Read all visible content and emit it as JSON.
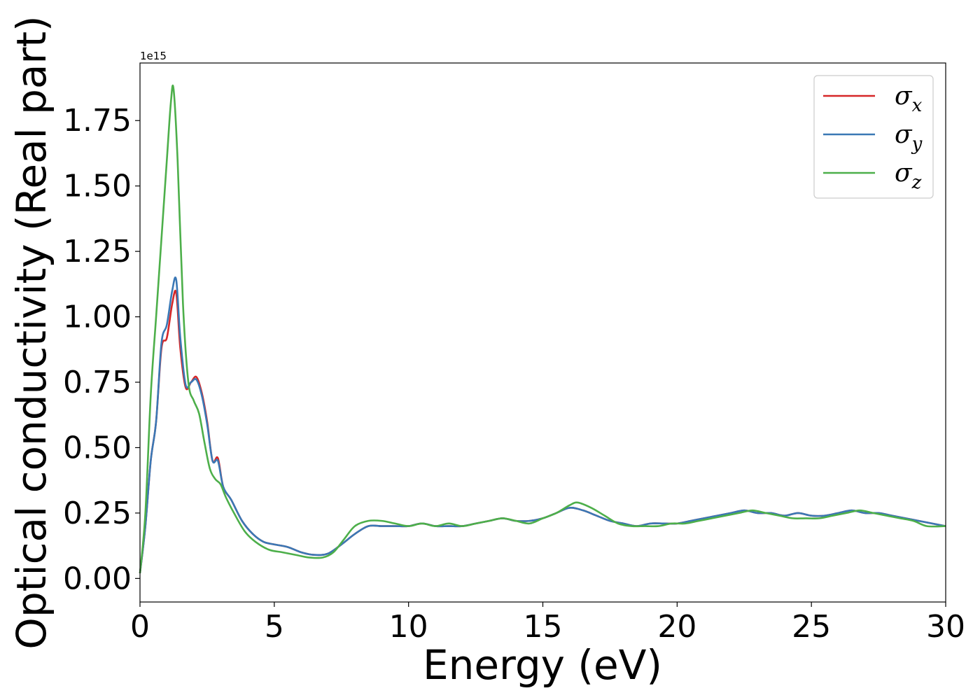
{
  "chart_data": {
    "type": "line",
    "xlabel": "Energy (eV)",
    "ylabel": "Optical conductivity (Real part)",
    "offset_text": "1e15",
    "y_scale": 1000000000000000.0,
    "xlim": [
      0,
      30
    ],
    "ylim": [
      -0.09,
      1.97
    ],
    "x_ticks": [
      0,
      5,
      10,
      15,
      20,
      25,
      30
    ],
    "x_tick_labels": [
      "0",
      "5",
      "10",
      "15",
      "20",
      "25",
      "30"
    ],
    "y_ticks": [
      0.0,
      0.25,
      0.5,
      0.75,
      1.0,
      1.25,
      1.5,
      1.75
    ],
    "y_tick_labels": [
      "0.00",
      "0.25",
      "0.50",
      "0.75",
      "1.00",
      "1.25",
      "1.50",
      "1.75"
    ],
    "grid": false,
    "legend_position": "top-right",
    "series": [
      {
        "name": "σx",
        "legend_base": "σ",
        "legend_sub": "x",
        "color": "#d62728",
        "x": [
          0,
          0.2,
          0.4,
          0.6,
          0.8,
          1.0,
          1.2,
          1.35,
          1.5,
          1.7,
          1.9,
          2.1,
          2.3,
          2.5,
          2.7,
          2.9,
          3.1,
          3.4,
          3.8,
          4.2,
          4.6,
          5.0,
          5.5,
          6.0,
          6.5,
          7.0,
          7.5,
          8.0,
          8.5,
          9.0,
          9.5,
          10,
          10.5,
          11,
          11.5,
          12,
          12.5,
          13,
          13.5,
          14,
          14.5,
          15,
          15.5,
          16,
          16.5,
          17,
          17.5,
          18,
          18.5,
          19,
          19.5,
          20,
          20.5,
          21,
          21.5,
          22,
          22.5,
          23,
          23.5,
          24,
          24.5,
          25,
          25.5,
          26,
          26.5,
          27,
          27.5,
          28,
          28.5,
          29,
          29.5,
          30
        ],
        "y": [
          0.02,
          0.2,
          0.45,
          0.6,
          0.88,
          0.92,
          1.05,
          1.09,
          0.88,
          0.73,
          0.75,
          0.77,
          0.71,
          0.6,
          0.45,
          0.46,
          0.35,
          0.3,
          0.22,
          0.17,
          0.14,
          0.13,
          0.12,
          0.1,
          0.09,
          0.095,
          0.13,
          0.17,
          0.2,
          0.2,
          0.2,
          0.2,
          0.21,
          0.2,
          0.2,
          0.2,
          0.21,
          0.22,
          0.23,
          0.22,
          0.22,
          0.23,
          0.25,
          0.27,
          0.26,
          0.24,
          0.22,
          0.21,
          0.2,
          0.21,
          0.21,
          0.21,
          0.22,
          0.23,
          0.24,
          0.25,
          0.26,
          0.25,
          0.25,
          0.24,
          0.25,
          0.24,
          0.24,
          0.25,
          0.26,
          0.25,
          0.25,
          0.24,
          0.23,
          0.22,
          0.21,
          0.2
        ]
      },
      {
        "name": "σy",
        "legend_base": "σ",
        "legend_sub": "y",
        "color": "#3a78b5",
        "x": [
          0,
          0.2,
          0.4,
          0.6,
          0.8,
          1.0,
          1.2,
          1.35,
          1.5,
          1.7,
          1.9,
          2.1,
          2.3,
          2.5,
          2.7,
          2.9,
          3.1,
          3.4,
          3.8,
          4.2,
          4.6,
          5.0,
          5.5,
          6.0,
          6.5,
          7.0,
          7.5,
          8.0,
          8.5,
          9.0,
          9.5,
          10,
          10.5,
          11,
          11.5,
          12,
          12.5,
          13,
          13.5,
          14,
          14.5,
          15,
          15.5,
          16,
          16.5,
          17,
          17.5,
          18,
          18.5,
          19,
          19.5,
          20,
          20.5,
          21,
          21.5,
          22,
          22.5,
          23,
          23.5,
          24,
          24.5,
          25,
          25.5,
          26,
          26.5,
          27,
          27.5,
          28,
          28.5,
          29,
          29.5,
          30
        ],
        "y": [
          0.02,
          0.2,
          0.45,
          0.6,
          0.9,
          0.97,
          1.1,
          1.14,
          0.92,
          0.74,
          0.75,
          0.76,
          0.7,
          0.59,
          0.45,
          0.45,
          0.35,
          0.3,
          0.22,
          0.17,
          0.14,
          0.13,
          0.12,
          0.1,
          0.09,
          0.095,
          0.13,
          0.17,
          0.2,
          0.2,
          0.2,
          0.2,
          0.21,
          0.2,
          0.2,
          0.2,
          0.21,
          0.22,
          0.23,
          0.22,
          0.22,
          0.23,
          0.25,
          0.27,
          0.26,
          0.24,
          0.22,
          0.21,
          0.2,
          0.21,
          0.21,
          0.21,
          0.22,
          0.23,
          0.24,
          0.25,
          0.26,
          0.25,
          0.25,
          0.24,
          0.25,
          0.24,
          0.24,
          0.25,
          0.26,
          0.25,
          0.25,
          0.24,
          0.23,
          0.22,
          0.21,
          0.2
        ]
      },
      {
        "name": "σz",
        "legend_base": "σ",
        "legend_sub": "z",
        "color": "#4daf4a",
        "x": [
          0,
          0.2,
          0.4,
          0.6,
          0.8,
          1.0,
          1.15,
          1.25,
          1.4,
          1.6,
          1.8,
          2.0,
          2.2,
          2.4,
          2.6,
          2.8,
          3.0,
          3.2,
          3.5,
          3.9,
          4.3,
          4.8,
          5.3,
          5.8,
          6.3,
          6.8,
          7.2,
          7.6,
          8.0,
          8.5,
          9.0,
          9.5,
          10,
          10.5,
          11,
          11.5,
          12,
          12.5,
          13,
          13.5,
          14,
          14.5,
          15,
          15.5,
          16,
          16.3,
          16.8,
          17.3,
          17.8,
          18.3,
          18.8,
          19.3,
          19.8,
          20.3,
          20.8,
          21.3,
          21.8,
          22.3,
          22.8,
          23.3,
          23.8,
          24.3,
          24.8,
          25.3,
          25.8,
          26.3,
          26.8,
          27.3,
          27.8,
          28.3,
          28.8,
          29.3,
          30
        ],
        "y": [
          0.02,
          0.25,
          0.7,
          1.0,
          1.3,
          1.6,
          1.82,
          1.87,
          1.6,
          1.05,
          0.75,
          0.68,
          0.63,
          0.52,
          0.42,
          0.38,
          0.36,
          0.31,
          0.25,
          0.18,
          0.14,
          0.11,
          0.1,
          0.09,
          0.08,
          0.08,
          0.1,
          0.15,
          0.2,
          0.22,
          0.22,
          0.21,
          0.2,
          0.21,
          0.2,
          0.21,
          0.2,
          0.21,
          0.22,
          0.23,
          0.22,
          0.21,
          0.23,
          0.25,
          0.28,
          0.29,
          0.27,
          0.24,
          0.21,
          0.2,
          0.2,
          0.2,
          0.21,
          0.21,
          0.22,
          0.23,
          0.24,
          0.25,
          0.26,
          0.25,
          0.24,
          0.23,
          0.23,
          0.23,
          0.24,
          0.25,
          0.26,
          0.25,
          0.24,
          0.23,
          0.22,
          0.2,
          0.2
        ]
      }
    ]
  }
}
